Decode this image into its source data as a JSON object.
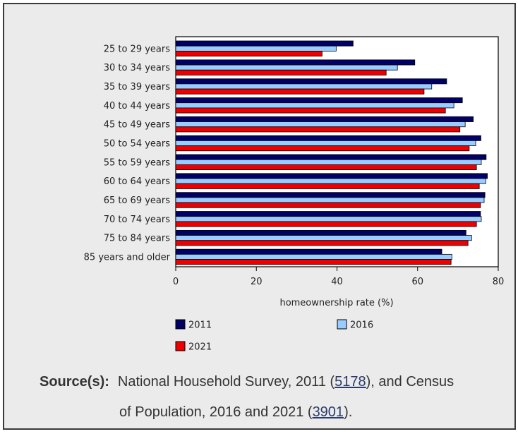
{
  "chart_data": {
    "type": "bar",
    "orientation": "horizontal",
    "categories": [
      "25 to 29 years",
      "30 to 34 years",
      "35 to 39 years",
      "40 to 44 years",
      "45 to 49 years",
      "50 to 54 years",
      "55 to 59 years",
      "60 to 64 years",
      "65 to 69 years",
      "70 to 74 years",
      "75 to 84 years",
      "85 years and older"
    ],
    "series": [
      {
        "name": "2011",
        "color": "#000066",
        "values": [
          44,
          59.3,
          67.2,
          71.1,
          73.8,
          75.7,
          77.0,
          77.3,
          76.7,
          75.6,
          72.0,
          66.0
        ]
      },
      {
        "name": "2016",
        "color": "#99ccff",
        "values": [
          39.8,
          55.0,
          63.5,
          69.0,
          71.8,
          74.4,
          75.8,
          76.9,
          76.5,
          75.8,
          73.4,
          68.5
        ]
      },
      {
        "name": "2021",
        "color": "#ee0000",
        "values": [
          36.3,
          52.2,
          61.6,
          66.9,
          70.5,
          72.8,
          74.6,
          75.3,
          75.6,
          74.6,
          72.5,
          68.3
        ]
      }
    ],
    "xlabel": "homeownership rate (%)",
    "xlim": [
      0,
      80
    ],
    "xticks": [
      "0",
      "20",
      "40",
      "60",
      "80"
    ],
    "legend": [
      "2011",
      "2016",
      "2021"
    ]
  },
  "source": {
    "label": "Source(s):",
    "text1": "National Household Survey, 2011 (",
    "link1": "5178",
    "text2": "), and Census",
    "text3": "of Population, 2016 and 2021 (",
    "link2": "3901",
    "text4": ")."
  }
}
